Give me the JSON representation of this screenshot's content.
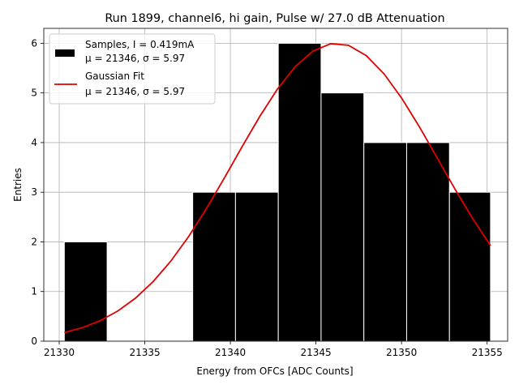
{
  "chart_data": {
    "type": "bar",
    "title": "Run 1899, channel6, hi gain, Pulse w/ 27.0 dB Attenuation",
    "xlabel": "Energy from OFCs [ADC Counts]",
    "ylabel": "Entries",
    "xlim": [
      21329.1,
      21356.2
    ],
    "ylim": [
      0,
      6.3
    ],
    "xticks": [
      21330,
      21335,
      21340,
      21345,
      21350,
      21355
    ],
    "yticks": [
      0,
      1,
      2,
      3,
      4,
      5,
      6
    ],
    "grid": true,
    "legend_position": "top-left",
    "bar_color": "#000000",
    "bar_edge_color": "#ffffff",
    "fit_color": "#e00000",
    "histogram": {
      "bin_edges": [
        21330.3,
        21332.8,
        21335.3,
        21337.8,
        21340.3,
        21342.8,
        21345.3,
        21347.8,
        21350.3,
        21352.8,
        21355.2
      ],
      "counts": [
        2,
        0,
        0,
        3,
        3,
        6,
        5,
        4,
        4,
        3
      ]
    },
    "fit": {
      "mu": 21346.2,
      "sigma": 5.97,
      "amplitude": 6.0
    },
    "legend": [
      {
        "kind": "bar",
        "line1": "Samples, I = 0.419mA",
        "line2": "μ = 21346, σ = 5.97"
      },
      {
        "kind": "line",
        "line1": "Gaussian Fit",
        "line2": "μ = 21346, σ = 5.97"
      }
    ]
  }
}
